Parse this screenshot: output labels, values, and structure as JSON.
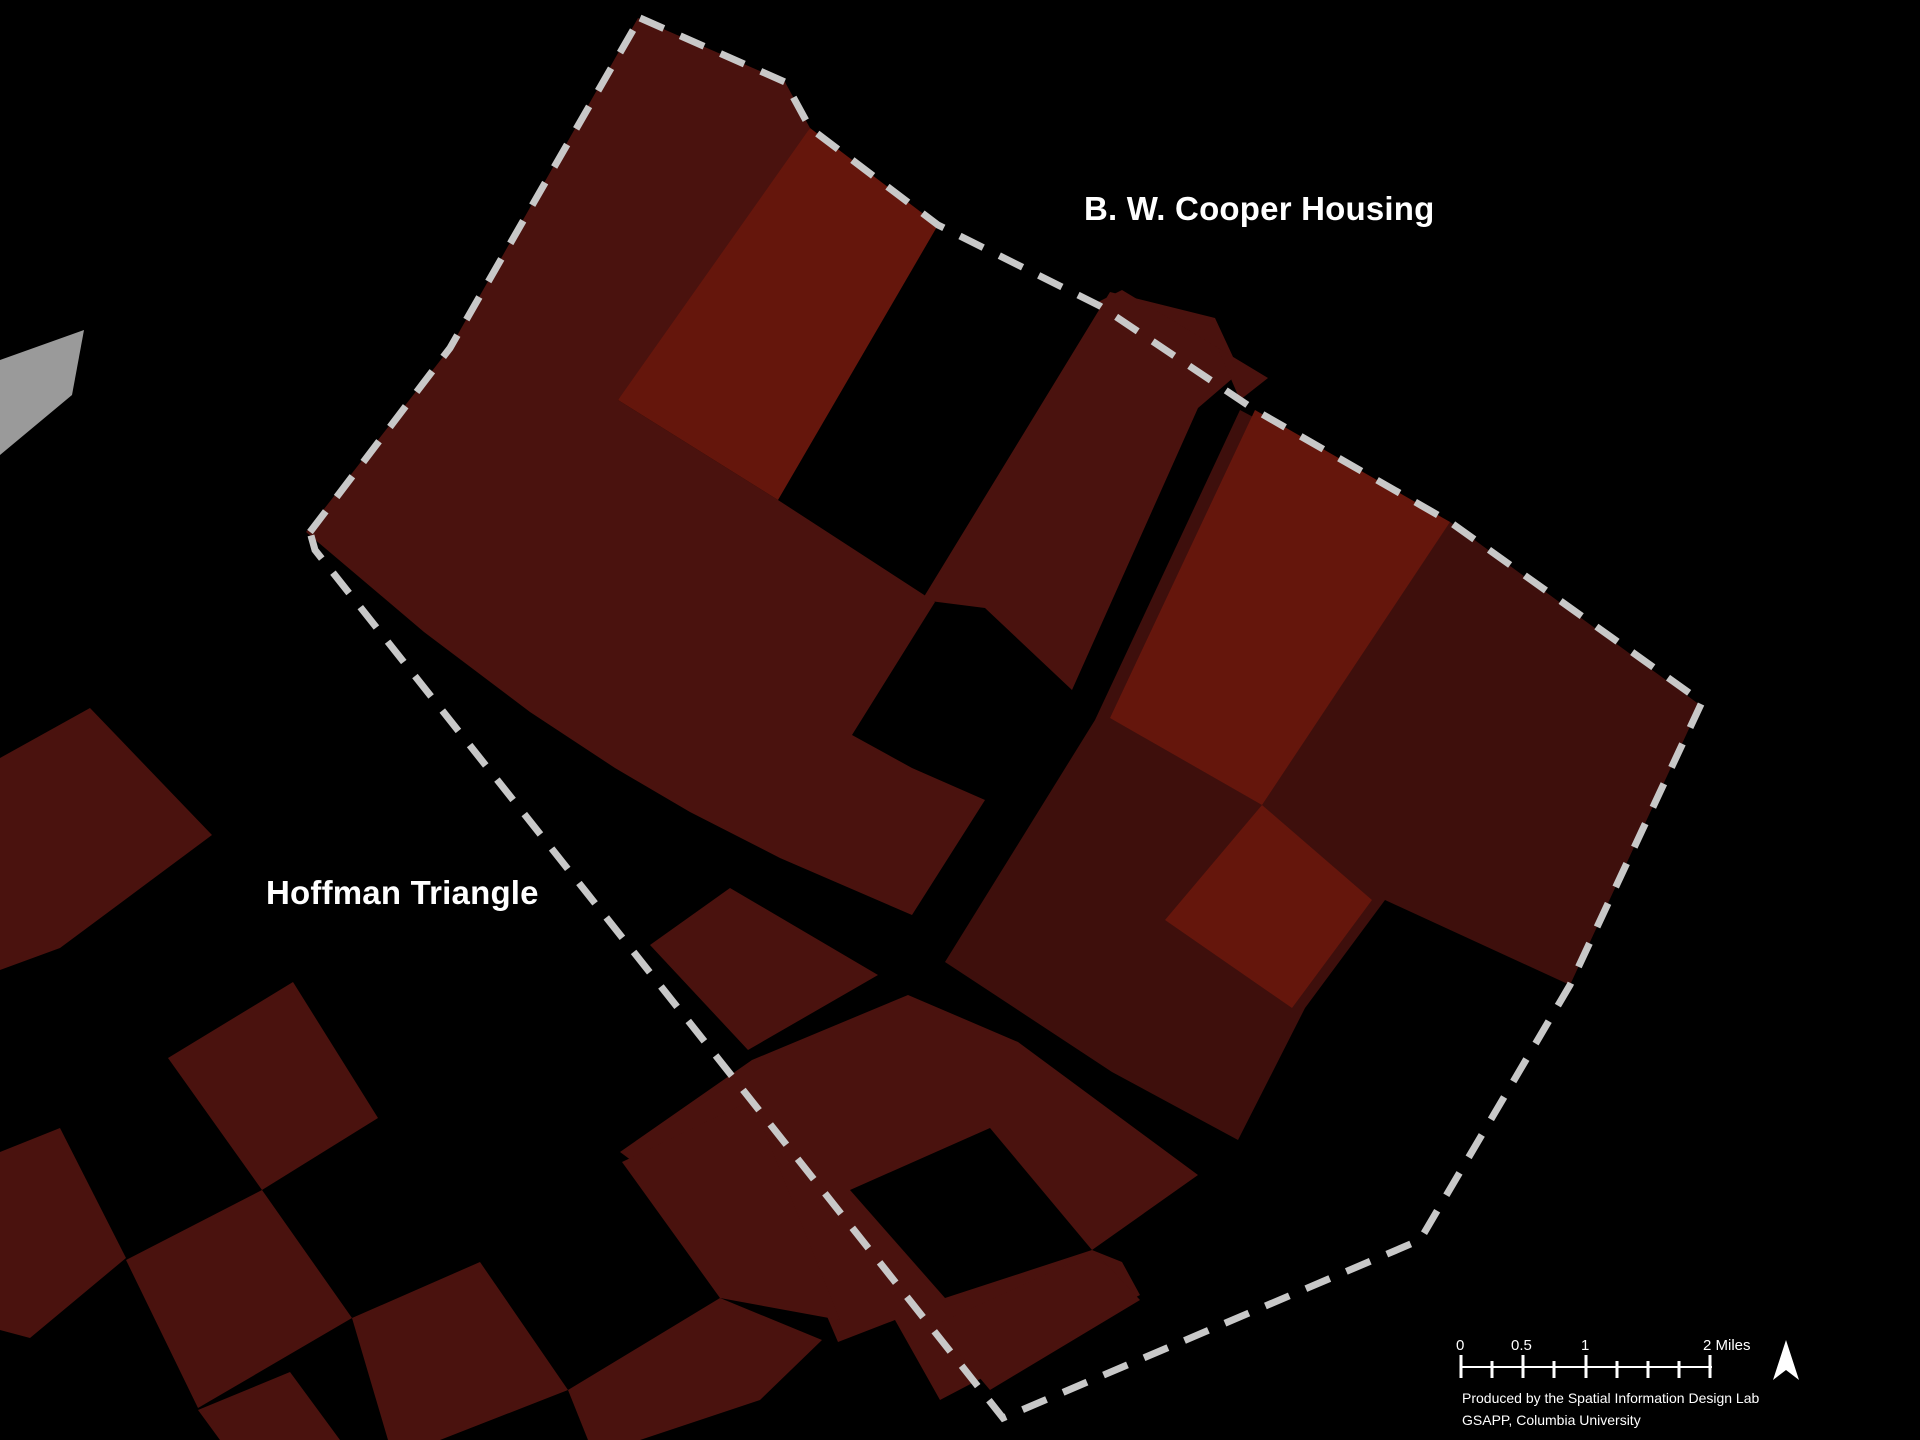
{
  "map": {
    "background_color": "#000000",
    "colors": {
      "block_dark": "#3e0f0c",
      "block_medium": "#4a120e",
      "block_bright": "#65160c",
      "boundary": "#c8c8c8",
      "adjacent_area": "#9a9a9a"
    },
    "labels": {
      "cooper": "B. W. Cooper Housing",
      "hoffman": "Hoffman Triangle"
    },
    "scale_bar": {
      "ticks": [
        "0",
        "0.5",
        "1",
        "2 Miles"
      ]
    },
    "north_arrow_icon": "north-arrow-icon",
    "credits": {
      "line1": "Produced by the Spatial Information Design Lab",
      "line2": "GSAPP, Columbia University"
    }
  }
}
